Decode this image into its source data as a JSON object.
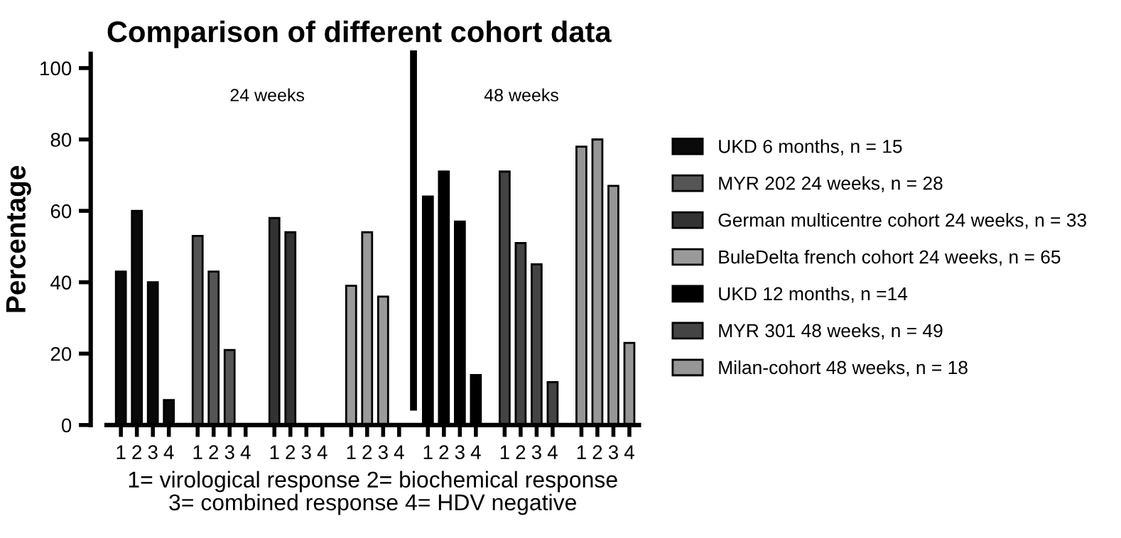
{
  "chart_data": {
    "type": "bar",
    "title": "Comparison of different cohort data",
    "xlabel": "1= virological response 2= biochemical response\n3= combined response 4= HDV negative",
    "ylabel": "Percentage",
    "categories": [
      "1",
      "2",
      "3",
      "4",
      "1",
      "2",
      "3",
      "4",
      "1",
      "2",
      "3",
      "4",
      "1",
      "2",
      "3",
      "4",
      "1",
      "2",
      "3",
      "4",
      "1",
      "2",
      "3",
      "4",
      "1",
      "2",
      "3",
      "4"
    ],
    "series": [
      {
        "name": "UKD 6 months, n = 15",
        "color": "#0a0a0a",
        "values": [
          43,
          60,
          40,
          7,
          null,
          null,
          null,
          null,
          null,
          null,
          null,
          null,
          null,
          null,
          null,
          null,
          null,
          null,
          null,
          null,
          null,
          null,
          null,
          null,
          null,
          null,
          null,
          null
        ]
      },
      {
        "name": "MYR 202 24 weeks, n = 28",
        "color": "#555555",
        "values": [
          null,
          null,
          null,
          null,
          53,
          43,
          21,
          null,
          null,
          null,
          null,
          null,
          null,
          null,
          null,
          null,
          null,
          null,
          null,
          null,
          null,
          null,
          null,
          null,
          null,
          null,
          null,
          null
        ]
      },
      {
        "name": "German multicentre cohort 24 weeks, n = 33",
        "color": "#333333",
        "values": [
          null,
          null,
          null,
          null,
          null,
          null,
          null,
          null,
          58,
          54,
          null,
          null,
          null,
          null,
          null,
          null,
          null,
          null,
          null,
          null,
          null,
          null,
          null,
          null,
          null,
          null,
          null,
          null
        ]
      },
      {
        "name": "BuleDelta french cohort 24 weeks, n = 65",
        "color": "#9a9a9a",
        "values": [
          null,
          null,
          null,
          null,
          null,
          null,
          null,
          null,
          null,
          null,
          null,
          null,
          39,
          54,
          36,
          null,
          null,
          null,
          null,
          null,
          null,
          null,
          null,
          null,
          null,
          null,
          null,
          null
        ]
      },
      {
        "name": "UKD 12 months, n =14",
        "color": "#000000",
        "values": [
          null,
          null,
          null,
          null,
          null,
          null,
          null,
          null,
          null,
          null,
          null,
          null,
          null,
          null,
          null,
          null,
          64,
          71,
          57,
          14,
          null,
          null,
          null,
          null,
          null,
          null,
          null,
          null
        ]
      },
      {
        "name": "MYR 301 48 weeks, n = 49",
        "color": "#444444",
        "values": [
          null,
          null,
          null,
          null,
          null,
          null,
          null,
          null,
          null,
          null,
          null,
          null,
          null,
          null,
          null,
          null,
          null,
          null,
          null,
          null,
          71,
          51,
          45,
          12,
          null,
          null,
          null,
          null
        ]
      },
      {
        "name": "Milan-cohort 48 weeks, n = 18",
        "color": "#969696",
        "values": [
          null,
          null,
          null,
          null,
          null,
          null,
          null,
          null,
          null,
          null,
          null,
          null,
          null,
          null,
          null,
          null,
          null,
          null,
          null,
          null,
          null,
          null,
          null,
          null,
          78,
          80,
          67,
          23
        ]
      }
    ],
    "ylim": [
      0,
      104
    ],
    "yticks": [
      0,
      20,
      40,
      60,
      80,
      100
    ],
    "annotations": [
      "24 weeks",
      "48 weeks"
    ],
    "legend": "right",
    "grid": false
  }
}
